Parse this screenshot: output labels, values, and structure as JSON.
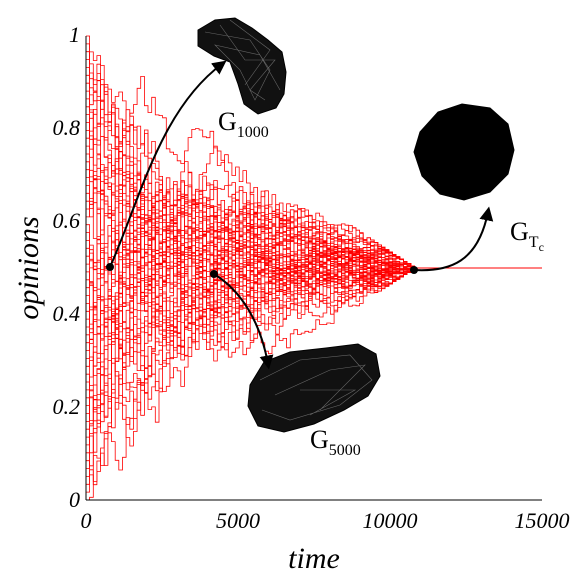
{
  "chart_data": {
    "type": "line",
    "title": "",
    "xlabel": "time",
    "ylabel": "opinions",
    "xlim": [
      0,
      15000
    ],
    "ylim": [
      0,
      1
    ],
    "x_ticks": [
      "0",
      "5000",
      "10000",
      "15000"
    ],
    "y_ticks": [
      "0",
      "0.2",
      "0.4",
      "0.6",
      "0.8",
      "1"
    ],
    "series_color": "#ff0000",
    "n_trajectories": 60,
    "consensus_value": 0.5,
    "consensus_time": 10800,
    "grid": false,
    "legend": "none",
    "annotations": [
      {
        "label": "G",
        "subscript": "1000",
        "time": 800,
        "opinion": 0.5
      },
      {
        "label": "G",
        "subscript": "5000",
        "time": 4200,
        "opinion": 0.49
      },
      {
        "label": "G",
        "subscript": "T",
        "subsubscript": "c",
        "time": 10800,
        "opinion": 0.495
      }
    ]
  }
}
